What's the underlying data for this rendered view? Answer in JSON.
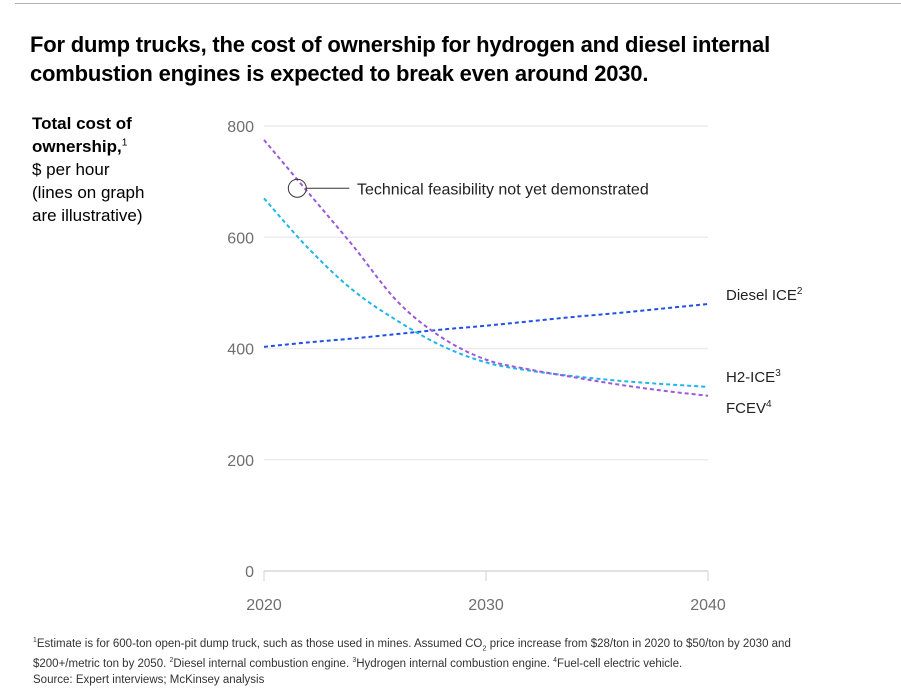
{
  "title": "For dump trucks, the cost of ownership for hydrogen and diesel internal combustion engines is expected to break even around 2030.",
  "y_axis_label": {
    "bold_line1": "Total cost of",
    "bold_line2": "ownership,",
    "bold_sup": "1",
    "unit": "$ per hour",
    "note_line1": "(lines on graph",
    "note_line2": "are illustrative)"
  },
  "chart_data": {
    "type": "line",
    "title": "For dump trucks, the cost of ownership for hydrogen and diesel internal combustion engines is expected to break even around 2030.",
    "xlabel": "",
    "ylabel": "Total cost of ownership, $ per hour (lines on graph are illustrative)",
    "x": [
      2020,
      2022,
      2024,
      2026,
      2028,
      2030,
      2032,
      2034,
      2036,
      2038,
      2040
    ],
    "xlim": [
      2020,
      2040
    ],
    "ylim": [
      0,
      800
    ],
    "x_ticks": [
      "2020",
      "2030",
      "2040"
    ],
    "x_tick_values": [
      2020,
      2030,
      2040
    ],
    "y_ticks": [
      "0",
      "200",
      "400",
      "600",
      "800"
    ],
    "y_tick_values": [
      0,
      200,
      400,
      600,
      800
    ],
    "grid": true,
    "legend": "inline-right",
    "series": [
      {
        "name": "Diesel ICE",
        "sup": "2",
        "color": "#2251e6",
        "values": [
          403,
          411,
          418,
          426,
          434,
          441,
          449,
          457,
          464,
          472,
          480
        ]
      },
      {
        "name": "H2-ICE",
        "sup": "3",
        "color": "#1fb6e8",
        "values": [
          670,
          580,
          505,
          450,
          405,
          375,
          360,
          350,
          342,
          336,
          331
        ]
      },
      {
        "name": "FCEV",
        "sup": "4",
        "color": "#9b59db",
        "values": [
          775,
          680,
          585,
          485,
          420,
          380,
          362,
          348,
          335,
          324,
          315
        ]
      }
    ],
    "annotation": {
      "text": "Technical feasibility not yet demonstrated",
      "x": 2021.5,
      "y": 688
    }
  },
  "footnotes": {
    "line1_sup": "1",
    "line1": "Estimate is for 600-ton open-pit dump truck, such as those used in mines. Assumed CO",
    "line1_sub": "2",
    "line1_rest": " price increase from $28/ton in 2020 to $50/ton by 2030 and",
    "line2_a": "$200+/metric ton by 2050. ",
    "line2_sup2": "2",
    "line2_b": "Diesel internal combustion engine. ",
    "line2_sup3": "3",
    "line2_c": "Hydrogen internal combustion engine. ",
    "line2_sup4": "4",
    "line2_d": "Fuel-cell electric vehicle.",
    "source": "Source: Expert interviews; McKinsey analysis"
  }
}
